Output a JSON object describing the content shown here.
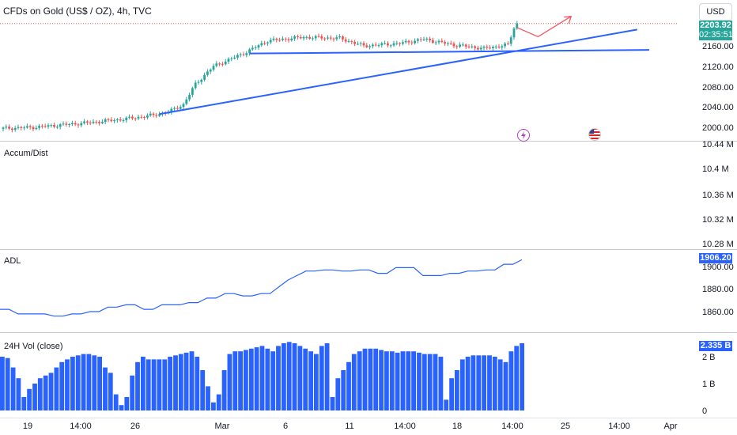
{
  "header": {
    "title": "CFDs on Gold (US$ / OZ), 4h, TVC",
    "currency_button": "USD"
  },
  "badges": {
    "price": "2203.92",
    "countdown": "02:35:51",
    "adl": "1906.20",
    "volume": "2.335 B"
  },
  "colors": {
    "up": "#26a69a",
    "down": "#ef5350",
    "trendline": "#2962ff",
    "forecast_arrow": "#f7525f",
    "line": "#2962ff",
    "volume": "#2962ff"
  },
  "icons": [
    "economic-event-icon",
    "us-flag-icon"
  ],
  "chart_data": [
    {
      "type": "candlestick",
      "title": "CFDs on Gold (US$ / OZ), 4h, TVC",
      "y_ticks": [
        "2160.00",
        "2120.00",
        "2080.00",
        "2040.00",
        "2000.00"
      ],
      "ylim": [
        1990,
        2220
      ],
      "x_ticks": [
        "19",
        "14:00",
        "26",
        "Mar",
        "6",
        "11",
        "14:00",
        "18",
        "14:00",
        "25",
        "14:00",
        "Apr"
      ],
      "close_path": [
        [
          0,
          1998
        ],
        [
          10,
          2000
        ],
        [
          20,
          2005
        ],
        [
          30,
          2010
        ],
        [
          40,
          2016
        ],
        [
          50,
          2024
        ],
        [
          55,
          2030
        ],
        [
          60,
          2045
        ],
        [
          64,
          2085
        ],
        [
          70,
          2120
        ],
        [
          76,
          2135
        ],
        [
          80,
          2145
        ],
        [
          88,
          2170
        ],
        [
          100,
          2177
        ],
        [
          112,
          2175
        ],
        [
          120,
          2160
        ],
        [
          132,
          2165
        ],
        [
          140,
          2173
        ],
        [
          150,
          2162
        ],
        [
          160,
          2155
        ],
        [
          168,
          2162
        ],
        [
          170,
          2195
        ],
        [
          171,
          2204
        ]
      ],
      "last_price": 2203.92,
      "trendlines": [
        {
          "from": [
            52,
            2026
          ],
          "to": [
            211,
            2192
          ]
        },
        {
          "from": [
            82,
            2145
          ],
          "to": [
            215,
            2152
          ]
        }
      ],
      "forecast_arrow": [
        [
          171,
          2196
        ],
        [
          178,
          2178
        ],
        [
          189,
          2218
        ]
      ]
    },
    {
      "type": "line",
      "title": "Accum/Dist",
      "y_ticks": [
        "10.44 M",
        "10.4 M",
        "10.36 M",
        "10.32 M",
        "10.28 M"
      ]
    },
    {
      "type": "line",
      "title": "ADL",
      "y_ticks": [
        "1900.00",
        "1880.00",
        "1860.00"
      ],
      "ylim": [
        1845,
        1910
      ],
      "last_value": 1906.2,
      "values": [
        1862,
        1862,
        1858,
        1858,
        1858,
        1858,
        1856,
        1856,
        1858,
        1858,
        1860,
        1860,
        1864,
        1864,
        1866,
        1866,
        1862,
        1862,
        1866,
        1866,
        1866,
        1868,
        1868,
        1872,
        1872,
        1876,
        1876,
        1874,
        1874,
        1876,
        1876,
        1882,
        1888,
        1892,
        1896,
        1896,
        1897,
        1897,
        1896,
        1896,
        1897,
        1897,
        1894,
        1894,
        1899,
        1899,
        1899,
        1892,
        1892,
        1892,
        1894,
        1894,
        1896,
        1896,
        1897,
        1897,
        1902,
        1902,
        1906
      ]
    },
    {
      "type": "bar",
      "title": "24H Vol (close)",
      "y_ticks": [
        "2 B",
        "1 B",
        "0"
      ],
      "ylim": [
        0,
        2.6
      ],
      "last_value": 2.335,
      "values": [
        2.0,
        1.95,
        1.6,
        1.2,
        0.5,
        0.8,
        1.0,
        1.2,
        1.3,
        1.4,
        1.6,
        1.8,
        1.9,
        2.0,
        2.05,
        2.1,
        2.1,
        2.05,
        2.0,
        1.6,
        1.4,
        0.6,
        0.2,
        0.5,
        1.3,
        1.8,
        2.0,
        1.9,
        1.9,
        1.9,
        1.9,
        2.0,
        2.05,
        2.1,
        2.15,
        2.2,
        2.0,
        1.5,
        0.9,
        0.3,
        0.6,
        1.5,
        2.1,
        2.2,
        2.2,
        2.25,
        2.3,
        2.35,
        2.4,
        2.3,
        2.2,
        2.4,
        2.5,
        2.55,
        2.5,
        2.4,
        2.3,
        2.2,
        2.1,
        2.4,
        2.5,
        0.5,
        1.2,
        1.5,
        1.8,
        2.1,
        2.2,
        2.3,
        2.3,
        2.3,
        2.25,
        2.2,
        2.2,
        2.15,
        2.2,
        2.2,
        2.2,
        2.15,
        2.1,
        2.1,
        2.1,
        2.0,
        0.4,
        1.2,
        1.5,
        1.9,
        2.0,
        2.05,
        2.05,
        2.05,
        2.05,
        2.0,
        1.9,
        1.8,
        2.2,
        2.4,
        2.5
      ]
    }
  ]
}
